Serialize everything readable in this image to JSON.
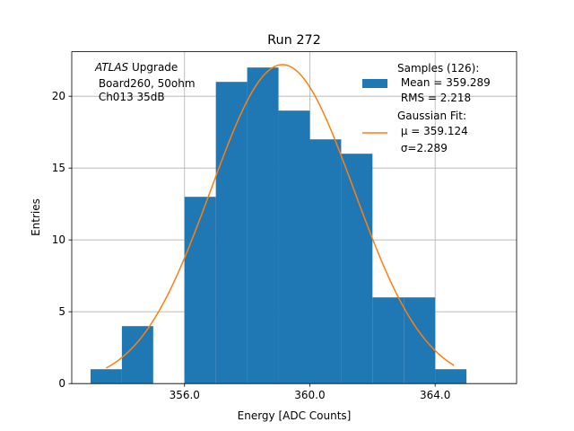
{
  "chart_data": {
    "type": "bar",
    "title": "Run 272",
    "xlabel": "Energy [ADC Counts]",
    "ylabel": "Entries",
    "xlim": [
      352.4,
      366.6
    ],
    "ylim": [
      0,
      23.1
    ],
    "grid": true,
    "xticks": [
      356,
      360,
      364
    ],
    "xtick_labels": [
      "356.0",
      "360.0",
      "364.0"
    ],
    "yticks": [
      0,
      5,
      10,
      15,
      20
    ],
    "ytick_labels": [
      "0",
      "5",
      "10",
      "15",
      "20"
    ],
    "histogram": {
      "name": "Samples (126)",
      "bin_edges": [
        353,
        354,
        355,
        356,
        357,
        358,
        359,
        360,
        361,
        362,
        363,
        364,
        365
      ],
      "counts": [
        1,
        4,
        0,
        13,
        21,
        22,
        19,
        17,
        16,
        6,
        6,
        1
      ],
      "color": "#1f77b4"
    },
    "fit": {
      "name": "Gaussian Fit",
      "amplitude": 22.2,
      "mu": 359.124,
      "sigma": 2.289,
      "x_range": [
        353.5,
        364.6
      ],
      "color": "#ff7f0e"
    },
    "annotation": {
      "experiment": "ATLAS",
      "line1_rest": " Upgrade",
      "line2": " Board260, 50ohm",
      "line3": " Ch013 35dB"
    },
    "legend": {
      "position": "top-right",
      "samples_title": "Samples (126):",
      "samples_mean": " Mean = 359.289",
      "samples_rms": " RMS = 2.218",
      "fit_title": "Gaussian Fit:",
      "fit_mu": " μ = 359.124",
      "fit_sigma": " σ=2.289"
    }
  }
}
